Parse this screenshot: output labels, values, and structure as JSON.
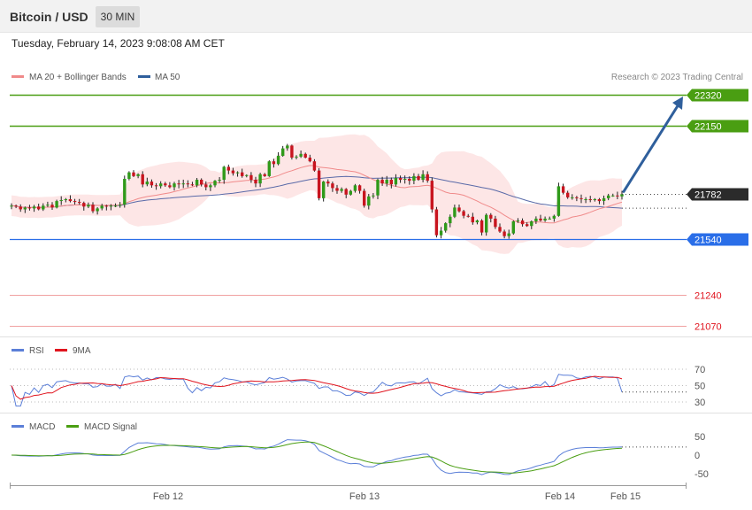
{
  "header": {
    "title": "Bitcoin / USD",
    "timeframe": "30 MIN"
  },
  "date": "Tuesday, February 14, 2023 9:08:08 AM CET",
  "credit": "Research © 2023 Trading Central",
  "colors": {
    "bullish": "#2f9a1a",
    "bearish": "#c8141e",
    "resistance": "#4a9e12",
    "support": "#2a6ee8",
    "target": "#2f5f9c",
    "ma20": "#f08a8a",
    "ma50": "#5a6aa8",
    "band": "#fde2e2",
    "rsi": "#5b7fd8",
    "ma9": "#e0141e",
    "macd": "#5b7fd8",
    "signal": "#4a9e12"
  },
  "chart_data": [
    {
      "type": "candlestick",
      "legend": [
        {
          "name": "MA 20 + Bollinger Bands",
          "color": "#f08a8a"
        },
        {
          "name": "MA 50",
          "color": "#2f5f9c"
        }
      ],
      "x_ticks": [
        "Feb 12",
        "Feb 13",
        "Feb 14",
        "Feb 15"
      ],
      "ylim": [
        21035,
        22360
      ],
      "levels": [
        {
          "value": 22320,
          "label": "22320",
          "kind": "resistance"
        },
        {
          "value": 22150,
          "label": "22150",
          "kind": "resistance"
        },
        {
          "value": 21782,
          "label": "21782",
          "kind": "last"
        },
        {
          "value": 21540,
          "label": "21540",
          "kind": "support"
        },
        {
          "value": 21240,
          "label": "21240",
          "kind": "minor"
        },
        {
          "value": 21070,
          "label": "21070",
          "kind": "minor"
        }
      ],
      "closes": [
        21720,
        21715,
        21700,
        21710,
        21705,
        21715,
        21700,
        21720,
        21725,
        21710,
        21745,
        21750,
        21755,
        21745,
        21740,
        21735,
        21715,
        21725,
        21690,
        21705,
        21720,
        21715,
        21720,
        21720,
        21725,
        21865,
        21900,
        21880,
        21890,
        21835,
        21850,
        21830,
        21825,
        21840,
        21830,
        21820,
        21840,
        21835,
        21840,
        21835,
        21830,
        21860,
        21835,
        21820,
        21830,
        21855,
        21860,
        21930,
        21910,
        21895,
        21900,
        21880,
        21885,
        21860,
        21840,
        21890,
        21880,
        21960,
        21945,
        21990,
        22030,
        22045,
        21980,
        21985,
        22000,
        21980,
        21960,
        21910,
        21760,
        21850,
        21840,
        21815,
        21800,
        21810,
        21780,
        21800,
        21830,
        21800,
        21720,
        21770,
        21775,
        21860,
        21840,
        21860,
        21835,
        21870,
        21860,
        21865,
        21855,
        21880,
        21860,
        21890,
        21855,
        21700,
        21560,
        21585,
        21625,
        21660,
        21710,
        21690,
        21665,
        21660,
        21630,
        21640,
        21575,
        21670,
        21650,
        21605,
        21580,
        21555,
        21570,
        21635,
        21640,
        21620,
        21610,
        21635,
        21650,
        21640,
        21650,
        21650,
        21665,
        21825,
        21790,
        21765,
        21765,
        21760,
        21755,
        21755,
        21750,
        21755,
        21745,
        21760,
        21775,
        21775,
        21770,
        21782
      ]
    },
    {
      "type": "line",
      "legend": [
        {
          "name": "RSI",
          "color": "#5b7fd8"
        },
        {
          "name": "9MA",
          "color": "#e0141e"
        }
      ],
      "y_ticks": [
        70,
        50,
        30
      ],
      "ylim": [
        20,
        80
      ]
    },
    {
      "type": "line",
      "legend": [
        {
          "name": "MACD",
          "color": "#5b7fd8"
        },
        {
          "name": "MACD Signal",
          "color": "#4a9e12"
        }
      ],
      "y_ticks": [
        50,
        0,
        -50
      ],
      "ylim": [
        -70,
        70
      ]
    }
  ]
}
